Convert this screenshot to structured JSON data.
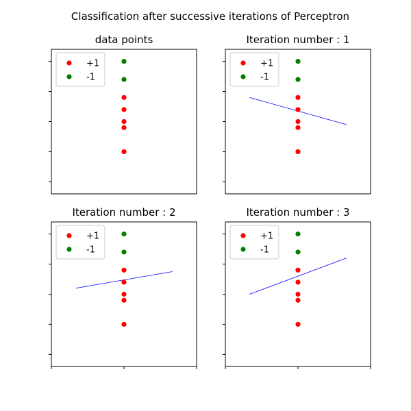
{
  "figure": {
    "suptitle": "Classification after successive iterations of Perceptron"
  },
  "chart_data": [
    {
      "type": "scatter",
      "title": "data points",
      "xlabel": "",
      "ylabel": "",
      "xlim": [
        -1.5,
        1.5
      ],
      "ylim": [
        -2.4,
        2.4
      ],
      "grid": false,
      "legend": "top-left",
      "series": [
        {
          "name": "+1",
          "color": "#ff0000",
          "points": [
            [
              0,
              0.8
            ],
            [
              0,
              0.4
            ],
            [
              0,
              0.0
            ],
            [
              0,
              -0.2
            ],
            [
              0,
              -1.0
            ]
          ]
        },
        {
          "name": "-1",
          "color": "#008000",
          "points": [
            [
              0,
              2.0
            ],
            [
              0,
              1.4
            ]
          ]
        }
      ],
      "decision_line": null
    },
    {
      "type": "scatter",
      "title": "Iteration number : 1",
      "xlabel": "",
      "ylabel": "",
      "xlim": [
        -1.5,
        1.5
      ],
      "ylim": [
        -2.4,
        2.4
      ],
      "grid": false,
      "legend": "top-left",
      "series": [
        {
          "name": "+1",
          "color": "#ff0000",
          "points": [
            [
              0,
              0.8
            ],
            [
              0,
              0.4
            ],
            [
              0,
              0.0
            ],
            [
              0,
              -0.2
            ],
            [
              0,
              -1.0
            ]
          ]
        },
        {
          "name": "-1",
          "color": "#008000",
          "points": [
            [
              0,
              2.0
            ],
            [
              0,
              1.4
            ]
          ]
        }
      ],
      "decision_line": {
        "color": "#0000ff",
        "points": [
          [
            -1.0,
            0.8
          ],
          [
            1.0,
            -0.1
          ]
        ]
      }
    },
    {
      "type": "scatter",
      "title": "Iteration number : 2",
      "xlabel": "",
      "ylabel": "",
      "xlim": [
        -1.5,
        1.5
      ],
      "ylim": [
        -2.4,
        2.4
      ],
      "grid": false,
      "legend": "top-left",
      "series": [
        {
          "name": "+1",
          "color": "#ff0000",
          "points": [
            [
              0,
              0.8
            ],
            [
              0,
              0.4
            ],
            [
              0,
              0.0
            ],
            [
              0,
              -0.2
            ],
            [
              0,
              -1.0
            ]
          ]
        },
        {
          "name": "-1",
          "color": "#008000",
          "points": [
            [
              0,
              2.0
            ],
            [
              0,
              1.4
            ]
          ]
        }
      ],
      "decision_line": {
        "color": "#0000ff",
        "points": [
          [
            -1.0,
            0.2
          ],
          [
            1.0,
            0.75
          ]
        ]
      }
    },
    {
      "type": "scatter",
      "title": "Iteration number : 3",
      "xlabel": "",
      "ylabel": "",
      "xlim": [
        -1.5,
        1.5
      ],
      "ylim": [
        -2.4,
        2.4
      ],
      "grid": false,
      "legend": "top-left",
      "series": [
        {
          "name": "+1",
          "color": "#ff0000",
          "points": [
            [
              0,
              0.8
            ],
            [
              0,
              0.4
            ],
            [
              0,
              0.0
            ],
            [
              0,
              -0.2
            ],
            [
              0,
              -1.0
            ]
          ]
        },
        {
          "name": "-1",
          "color": "#008000",
          "points": [
            [
              0,
              2.0
            ],
            [
              0,
              1.4
            ]
          ]
        }
      ],
      "decision_line": {
        "color": "#0000ff",
        "points": [
          [
            -1.0,
            0.0
          ],
          [
            1.0,
            1.2
          ]
        ]
      }
    }
  ]
}
